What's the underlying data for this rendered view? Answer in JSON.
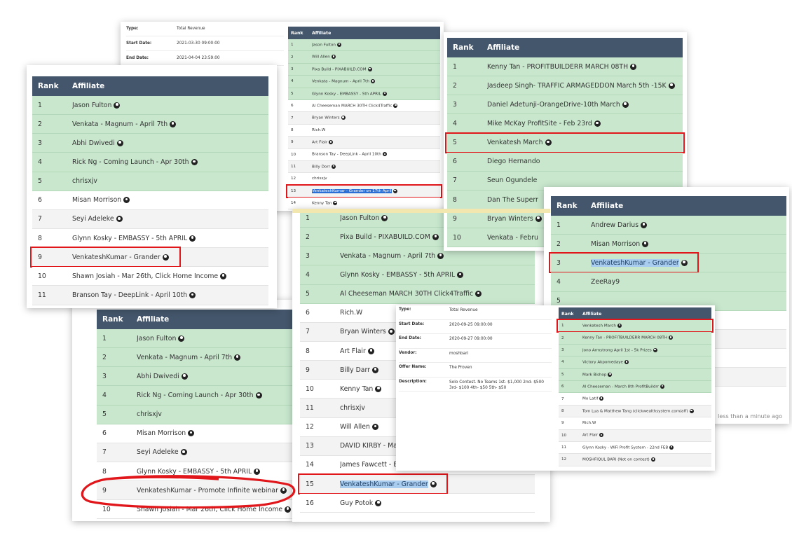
{
  "colors": {
    "header": "#44566b",
    "prize_row": "#c8e7cd",
    "marker": "#e0161b",
    "selection": "#a9cdee",
    "link": "#2a73d6"
  },
  "icons": {
    "affiliate_icon": "user-circle-icon"
  },
  "panels": [
    {
      "id": "p1",
      "size": "small",
      "headers": {
        "rank": "Rank",
        "affiliate": "Affiliate"
      },
      "details": [
        {
          "label": "Type:",
          "value": "Total Revenue"
        },
        {
          "label": "Start Date:",
          "value": "2021-03-30 09:00:00"
        },
        {
          "label": "End Date:",
          "value": "2021-04-04 23:59:00"
        }
      ],
      "rows": [
        {
          "rank": "1",
          "name": "Jason Fulton",
          "icon": true,
          "prize": true
        },
        {
          "rank": "2",
          "name": "Will Allen",
          "icon": true,
          "prize": true
        },
        {
          "rank": "3",
          "name": "Pixa Build - PIXABUILD.COM",
          "icon": true,
          "prize": true
        },
        {
          "rank": "4",
          "name": "Venkata - Magnum - April 7th",
          "icon": true,
          "prize": true
        },
        {
          "rank": "5",
          "name": "Glynn Kosky - EMBASSY - 5th APRIL",
          "icon": true,
          "prize": true
        },
        {
          "rank": "6",
          "name": "Al Cheeseman MARCH 30TH Click4Traffic",
          "icon": true
        },
        {
          "rank": "7",
          "name": "Bryan Winters",
          "icon": true
        },
        {
          "rank": "8",
          "name": "Rich.W",
          "icon": false
        },
        {
          "rank": "9",
          "name": "Art Flair",
          "icon": true
        },
        {
          "rank": "10",
          "name": "Branson Tay - DeepLink - April 10th",
          "icon": true
        },
        {
          "rank": "11",
          "name": "Billy Dorr",
          "icon": true
        },
        {
          "rank": "12",
          "name": "chrisxjv",
          "icon": false
        },
        {
          "rank": "13",
          "name": "VenkateshKumar - Grander on 17th April",
          "icon": true,
          "selected": true,
          "marked": "row"
        },
        {
          "rank": "14",
          "name": "Kenny Tan",
          "icon": true
        }
      ]
    },
    {
      "id": "p2",
      "size": "big",
      "headers": {
        "rank": "Rank",
        "affiliate": "Affiliate"
      },
      "rows": [
        {
          "rank": "1",
          "name": "Jason Fulton",
          "icon": true,
          "prize": true
        },
        {
          "rank": "2",
          "name": "Venkata - Magnum - April 7th",
          "icon": true,
          "prize": true
        },
        {
          "rank": "3",
          "name": "Abhi Dwivedi",
          "icon": true,
          "prize": true
        },
        {
          "rank": "4",
          "name": "Rick Ng - Coming Launch - Apr 30th",
          "icon": true,
          "prize": true
        },
        {
          "rank": "5",
          "name": "chrisxjv",
          "icon": false,
          "prize": true
        },
        {
          "rank": "6",
          "name": "Misan Morrison",
          "icon": true
        },
        {
          "rank": "7",
          "name": "Seyi Adeleke",
          "icon": true
        },
        {
          "rank": "8",
          "name": "Glynn Kosky - EMBASSY - 5th APRIL",
          "icon": true
        },
        {
          "rank": "9",
          "name": "VenkateshKumar - Promote Infinite webinar",
          "icon": true,
          "marked": "ellipse"
        },
        {
          "rank": "10",
          "name": "Shawn Josiah - Mar 26th, Click Home Income",
          "icon": true
        }
      ]
    },
    {
      "id": "p3",
      "size": "big",
      "headers": {
        "rank": "Rank",
        "affiliate": "Affiliate"
      },
      "rows": [
        {
          "rank": "1",
          "name": "Jason Fulton",
          "icon": true,
          "prize": true
        },
        {
          "rank": "2",
          "name": "Venkata - Magnum - April 7th",
          "icon": true,
          "prize": true
        },
        {
          "rank": "3",
          "name": "Abhi Dwivedi",
          "icon": true,
          "prize": true
        },
        {
          "rank": "4",
          "name": "Rick Ng - Coming Launch - Apr 30th",
          "icon": true,
          "prize": true
        },
        {
          "rank": "5",
          "name": "chrisxjv",
          "icon": false,
          "prize": true
        },
        {
          "rank": "6",
          "name": "Misan Morrison",
          "icon": true
        },
        {
          "rank": "7",
          "name": "Seyi Adeleke",
          "icon": true
        },
        {
          "rank": "8",
          "name": "Glynn Kosky - EMBASSY - 5th APRIL",
          "icon": true
        },
        {
          "rank": "9",
          "name": "VenkateshKumar - Grander",
          "icon": true,
          "marked": "box"
        },
        {
          "rank": "10",
          "name": "Shawn Josiah - Mar 26th, Click Home Income",
          "icon": true
        },
        {
          "rank": "11",
          "name": "Branson Tay - DeepLink - April 10th",
          "icon": true
        }
      ]
    },
    {
      "id": "p4",
      "size": "big",
      "noheader": true,
      "rows": [
        {
          "rank": "1",
          "name": "Jason Fulton",
          "icon": true,
          "prize": true
        },
        {
          "rank": "2",
          "name": "Pixa Build - PIXABUILD.COM",
          "icon": true,
          "prize": true
        },
        {
          "rank": "3",
          "name": "Venkata - Magnum - April 7th",
          "icon": true,
          "prize": true
        },
        {
          "rank": "4",
          "name": "Glynn Kosky - EMBASSY - 5th APRIL",
          "icon": true,
          "prize": true
        },
        {
          "rank": "5",
          "name": "Al Cheeseman MARCH 30TH Click4Traffic",
          "icon": true,
          "prize": true
        },
        {
          "rank": "6",
          "name": "Rich.W",
          "icon": false
        },
        {
          "rank": "7",
          "name": "Bryan Winters",
          "icon": true
        },
        {
          "rank": "8",
          "name": "Art Flair",
          "icon": true
        },
        {
          "rank": "9",
          "name": "Billy Darr",
          "icon": true
        },
        {
          "rank": "10",
          "name": "Kenny Tan",
          "icon": true
        },
        {
          "rank": "11",
          "name": "chrisxjv",
          "icon": false
        },
        {
          "rank": "12",
          "name": "Will Allen",
          "icon": true
        },
        {
          "rank": "13",
          "name": "DAVID KIRBY - Marc",
          "icon": false
        },
        {
          "rank": "14",
          "name": "James Fawcett - Endgame - April 4th",
          "icon": true
        },
        {
          "rank": "15",
          "name": "VenkateshKumar - Grander",
          "icon": true,
          "selected": true,
          "marked": "box"
        },
        {
          "rank": "16",
          "name": "Guy Potok",
          "icon": true
        }
      ]
    },
    {
      "id": "p5",
      "size": "big",
      "headers": {
        "rank": "Rank",
        "affiliate": "Affiliate"
      },
      "rows": [
        {
          "rank": "1",
          "name": "Kenny Tan - PROFITBUILDERR MARCH 08TH",
          "icon": true,
          "prize": true
        },
        {
          "rank": "2",
          "name": "Jasdeep Singh- TRAFFIC ARMAGEDDON March 5th -15K",
          "icon": true,
          "prize": true
        },
        {
          "rank": "3",
          "name": "Daniel Adetunji-OrangeDrive-10th March",
          "icon": true,
          "prize": true
        },
        {
          "rank": "4",
          "name": "Mike McKay ProfitSite - Feb 23rd",
          "icon": true,
          "prize": true
        },
        {
          "rank": "5",
          "name": "Venkatesh March",
          "icon": true,
          "prize": true,
          "marked": "row"
        },
        {
          "rank": "6",
          "name": "Diego Hernando",
          "icon": false,
          "prize": true
        },
        {
          "rank": "7",
          "name": "Seun Ogundele",
          "icon": false,
          "prize": true
        },
        {
          "rank": "8",
          "name": "Dan The Superr",
          "icon": false,
          "prize": true
        },
        {
          "rank": "9",
          "name": "Bryan Winters",
          "icon": true,
          "prize": true
        },
        {
          "rank": "10",
          "name": "Venkata - Febru",
          "icon": false,
          "prize": true
        }
      ]
    },
    {
      "id": "p6",
      "size": "big",
      "headers": {
        "rank": "Rank",
        "affiliate": "Affiliate"
      },
      "footer": "less than a minute ago",
      "rows": [
        {
          "rank": "1",
          "name": "Andrew Darius",
          "icon": true,
          "prize": true
        },
        {
          "rank": "2",
          "name": "Misan Morrison",
          "icon": true,
          "prize": true
        },
        {
          "rank": "3",
          "name": "VenkateshKumar - Grander",
          "icon": true,
          "prize": true,
          "selected": true,
          "marked": "box"
        },
        {
          "rank": "4",
          "name": "ZeeRay9",
          "icon": false,
          "prize": true
        },
        {
          "rank": "5",
          "name": "",
          "icon": false,
          "prize": true
        },
        {
          "rank": "",
          "name": "",
          "icon": false
        },
        {
          "rank": "",
          "name": "",
          "icon": false
        },
        {
          "rank": "",
          "name": "",
          "icon": false
        },
        {
          "rank": "",
          "name": "",
          "icon": false
        }
      ]
    },
    {
      "id": "p7",
      "size": "small",
      "headers": {
        "rank": "Rank",
        "affiliate": "Affiliate"
      },
      "details": [
        {
          "label": "Type:",
          "value": "Total Revenue"
        },
        {
          "label": "Start Date:",
          "value": "2020-09-25 09:00:00"
        },
        {
          "label": "End Date:",
          "value": "2020-09-27 09:00:00"
        },
        {
          "label": "Vendor:",
          "value": "moshbari",
          "link": true
        },
        {
          "label": "Offer Name:",
          "value": "The Proven",
          "link": true
        },
        {
          "label": "Description:",
          "value": "Solo Contest. No Teams 1st- $1,000 2nd- $500 3rd- $100 4th- $50 5th- $50"
        }
      ],
      "rows": [
        {
          "rank": "1",
          "name": "Venkatesh March",
          "icon": true,
          "prize": true,
          "marked": "row"
        },
        {
          "rank": "2",
          "name": "Kenny Tan - PROFITBUILDERR MARCH 08TH",
          "icon": true,
          "prize": true
        },
        {
          "rank": "3",
          "name": "Jono Armstrong April 1st - 5k Prizes",
          "icon": true,
          "prize": true
        },
        {
          "rank": "4",
          "name": "Victory Akpomedaye",
          "icon": true,
          "prize": true
        },
        {
          "rank": "5",
          "name": "Mark Bishop",
          "icon": true,
          "prize": true
        },
        {
          "rank": "6",
          "name": "Al Cheeseman - March 8th ProfitBuildrr",
          "icon": true,
          "prize": true
        },
        {
          "rank": "7",
          "name": "Mo Latif",
          "icon": true
        },
        {
          "rank": "8",
          "name": "Tom Lua & Matthew Tang (clickwealthsystem.com/aff)",
          "icon": true
        },
        {
          "rank": "9",
          "name": "Rich.W",
          "icon": false
        },
        {
          "rank": "10",
          "name": "Art Flair",
          "icon": true
        },
        {
          "rank": "11",
          "name": "Glynn Kosky - WiFi Profit System - 22nd FEB",
          "icon": true
        },
        {
          "rank": "12",
          "name": "MOSHFIQUL BARI (Not on contest)",
          "icon": true
        }
      ]
    }
  ]
}
